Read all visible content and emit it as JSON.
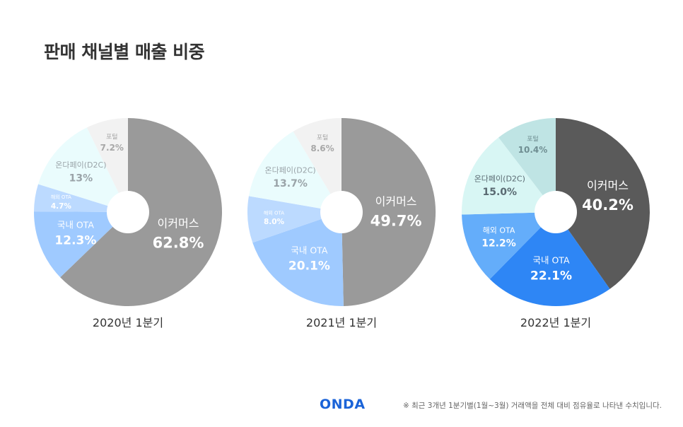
{
  "title": "판매 채널별 매출 비중",
  "logo": "ONDA",
  "footnote": "※ 최근 3개년 1분기별(1월~3월) 거래액을 전체 대비 점유율로 나타낸 수치입니다.",
  "chart_data": [
    {
      "type": "pie",
      "caption": "2020년 1분기",
      "slices": [
        {
          "label": "이커머스",
          "value": 62.8,
          "display": "62.8%",
          "color": "#9a9a9a",
          "text_color": "#ffffff",
          "label_size": "large"
        },
        {
          "label": "국내 OTA",
          "value": 12.3,
          "display": "12.3%",
          "color": "#9fcaff",
          "text_color": "#ffffff",
          "label_size": "medium"
        },
        {
          "label": "해외 OTA",
          "value": 4.7,
          "display": "4.7%",
          "color": "#bcdaff",
          "text_color": "#ffffff",
          "label_size": "tiny"
        },
        {
          "label": "온다페이(D2C)",
          "value": 13,
          "display": "13%",
          "color": "#eafcfd",
          "text_color": "#9aa3a8",
          "label_size": "small"
        },
        {
          "label": "포털",
          "value": 7.2,
          "display": "7.2%",
          "color": "#f2f2f2",
          "text_color": "#a8a8a8",
          "label_size": "xsmall"
        }
      ]
    },
    {
      "type": "pie",
      "caption": "2021년 1분기",
      "slices": [
        {
          "label": "이커머스",
          "value": 49.7,
          "display": "49.7%",
          "color": "#9a9a9a",
          "text_color": "#ffffff",
          "label_size": "large"
        },
        {
          "label": "국내 OTA",
          "value": 20.1,
          "display": "20.1%",
          "color": "#9fcaff",
          "text_color": "#ffffff",
          "label_size": "medium"
        },
        {
          "label": "해외 OTA",
          "value": 8.0,
          "display": "8.0%",
          "color": "#bcdaff",
          "text_color": "#ffffff",
          "label_size": "tiny"
        },
        {
          "label": "온다페이(D2C)",
          "value": 13.7,
          "display": "13.7%",
          "color": "#eafcfd",
          "text_color": "#9aa3a8",
          "label_size": "small"
        },
        {
          "label": "포털",
          "value": 8.6,
          "display": "8.6%",
          "color": "#f2f2f2",
          "text_color": "#a8a8a8",
          "label_size": "xsmall"
        }
      ]
    },
    {
      "type": "pie",
      "caption": "2022년 1분기",
      "slices": [
        {
          "label": "이커머스",
          "value": 40.2,
          "display": "40.2%",
          "color": "#5a5a5a",
          "text_color": "#ffffff",
          "label_size": "large"
        },
        {
          "label": "국내 OTA",
          "value": 22.1,
          "display": "22.1%",
          "color": "#2e86f5",
          "text_color": "#ffffff",
          "label_size": "medium"
        },
        {
          "label": "해외 OTA",
          "value": 12.2,
          "display": "12.2%",
          "color": "#64adfa",
          "text_color": "#ffffff",
          "label_size": "small"
        },
        {
          "label": "온다페이(D2C)",
          "value": 15.0,
          "display": "15.0%",
          "color": "#d8f6f4",
          "text_color": "#5a6a72",
          "label_size": "small"
        },
        {
          "label": "포털",
          "value": 10.4,
          "display": "10.4%",
          "color": "#bfe4e4",
          "text_color": "#6f8e92",
          "label_size": "xsmall"
        }
      ]
    }
  ]
}
